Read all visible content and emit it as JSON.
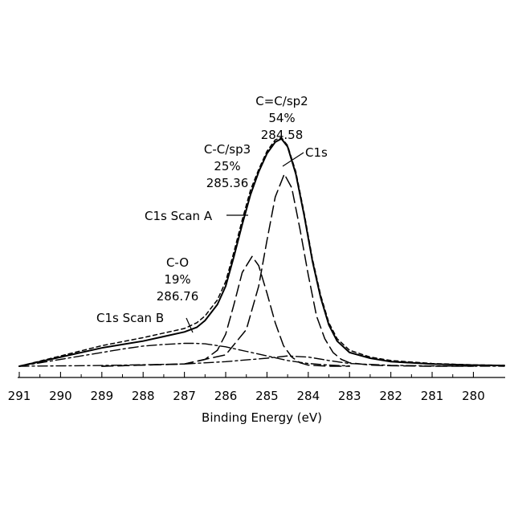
{
  "chart_data": {
    "type": "line",
    "xlabel": "Binding Energy (eV)",
    "ylabel": "",
    "xlim": [
      291,
      279.25
    ],
    "x_reversed": true,
    "x_ticks": [
      291,
      290,
      289,
      288,
      287,
      286,
      285,
      284,
      283,
      282,
      281,
      280
    ],
    "ylim": [
      0,
      1.18
    ],
    "grid": false,
    "legend": "none",
    "series": [
      {
        "style": "solid",
        "role": "envelope",
        "x": [
          291.0,
          290.0,
          289.0,
          288.5,
          288.0,
          287.5,
          287.0,
          286.7,
          286.5,
          286.2,
          286.0,
          285.8,
          285.6,
          285.4,
          285.2,
          285.0,
          284.8,
          284.65,
          284.5,
          284.3,
          284.1,
          283.9,
          283.7,
          283.5,
          283.3,
          283.0,
          282.5,
          282.0,
          281.0,
          280.0,
          279.25
        ],
        "y": [
          0.0,
          0.04,
          0.08,
          0.095,
          0.11,
          0.13,
          0.15,
          0.17,
          0.2,
          0.27,
          0.35,
          0.48,
          0.62,
          0.75,
          0.85,
          0.93,
          0.98,
          0.995,
          0.96,
          0.84,
          0.66,
          0.46,
          0.3,
          0.18,
          0.11,
          0.06,
          0.035,
          0.02,
          0.01,
          0.005,
          0.003
        ]
      },
      {
        "style": "short-dash",
        "role": "measured",
        "x": [
          291.0,
          290.0,
          289.0,
          288.0,
          287.5,
          287.0,
          286.7,
          286.5,
          286.2,
          286.0,
          285.8,
          285.6,
          285.4,
          285.2,
          285.0,
          284.8,
          284.65,
          284.5,
          284.3,
          284.1,
          283.9,
          283.7,
          283.5,
          283.3,
          283.0,
          282.5,
          282.0,
          281.0,
          280.0,
          279.25
        ],
        "y": [
          0.0,
          0.045,
          0.09,
          0.125,
          0.145,
          0.165,
          0.19,
          0.22,
          0.29,
          0.37,
          0.5,
          0.64,
          0.77,
          0.86,
          0.94,
          0.99,
          1.0,
          0.965,
          0.85,
          0.67,
          0.47,
          0.31,
          0.19,
          0.12,
          0.07,
          0.04,
          0.025,
          0.012,
          0.006,
          0.004
        ]
      },
      {
        "style": "long-dash",
        "role": "C=C/sp2",
        "x": [
          289.0,
          287.0,
          286.0,
          285.5,
          285.2,
          285.0,
          284.8,
          284.58,
          284.4,
          284.2,
          284.0,
          283.8,
          283.6,
          283.4,
          283.2,
          283.0,
          282.5,
          282.0,
          281.0,
          280.0
        ],
        "y": [
          0.0,
          0.01,
          0.05,
          0.16,
          0.35,
          0.55,
          0.74,
          0.84,
          0.78,
          0.6,
          0.4,
          0.22,
          0.12,
          0.06,
          0.03,
          0.015,
          0.005,
          0.002,
          0.0,
          0.0
        ]
      },
      {
        "style": "long-dash",
        "role": "C-C/sp3",
        "x": [
          289.0,
          287.0,
          286.5,
          286.2,
          286.0,
          285.8,
          285.6,
          285.36,
          285.2,
          285.0,
          284.8,
          284.6,
          284.4,
          284.2,
          284.0,
          283.5,
          283.0
        ],
        "y": [
          0.0,
          0.01,
          0.03,
          0.07,
          0.14,
          0.27,
          0.41,
          0.48,
          0.44,
          0.32,
          0.19,
          0.09,
          0.04,
          0.015,
          0.005,
          0.0,
          0.0
        ]
      },
      {
        "style": "dash-dot",
        "role": "C-O",
        "x": [
          291.0,
          290.0,
          289.0,
          288.5,
          288.0,
          287.5,
          287.0,
          286.76,
          286.5,
          286.0,
          285.5,
          285.0,
          284.5,
          284.0,
          283.5,
          283.0
        ],
        "y": [
          0.0,
          0.03,
          0.06,
          0.075,
          0.088,
          0.095,
          0.1,
          0.1,
          0.098,
          0.085,
          0.065,
          0.045,
          0.025,
          0.012,
          0.005,
          0.001
        ]
      },
      {
        "style": "dash-dot",
        "role": "background",
        "x": [
          291.0,
          289.0,
          287.0,
          286.0,
          285.0,
          284.5,
          284.0,
          283.5,
          283.0,
          282.0,
          281.0,
          279.25
        ],
        "y": [
          0.0,
          0.003,
          0.01,
          0.02,
          0.035,
          0.045,
          0.04,
          0.025,
          0.012,
          0.004,
          0.001,
          0.0
        ]
      }
    ],
    "annotations": [
      {
        "key": "sp2",
        "lines": [
          "C=C/sp2",
          "54%",
          "284.58"
        ]
      },
      {
        "key": "sp3",
        "lines": [
          "C-C/sp3",
          "25%",
          "285.36"
        ]
      },
      {
        "key": "co",
        "lines": [
          "C-O",
          "19%",
          "286.76"
        ]
      },
      {
        "key": "c1s",
        "lines": [
          "C1s"
        ]
      },
      {
        "key": "scanA",
        "lines": [
          "C1s Scan A"
        ]
      },
      {
        "key": "scanB",
        "lines": [
          "C1s Scan B"
        ]
      }
    ]
  }
}
